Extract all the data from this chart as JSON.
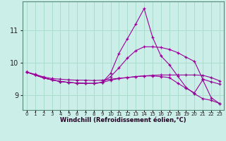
{
  "xlabel": "Windchill (Refroidissement éolien,°C)",
  "background_color": "#cceee8",
  "grid_color": "#aaddcc",
  "line_color": "#990099",
  "x_hours": [
    0,
    1,
    2,
    3,
    4,
    5,
    6,
    7,
    8,
    9,
    10,
    11,
    12,
    13,
    14,
    15,
    16,
    17,
    18,
    19,
    20,
    21,
    22,
    23
  ],
  "line1": [
    9.72,
    9.65,
    9.57,
    9.52,
    9.5,
    9.48,
    9.47,
    9.47,
    9.46,
    9.47,
    9.5,
    9.53,
    9.55,
    9.58,
    9.6,
    9.62,
    9.63,
    9.63,
    9.63,
    9.63,
    9.63,
    9.62,
    9.55,
    9.45
  ],
  "line2": [
    9.72,
    9.63,
    9.54,
    9.48,
    9.43,
    9.4,
    9.38,
    9.37,
    9.37,
    9.4,
    9.58,
    9.85,
    10.15,
    10.38,
    10.5,
    10.5,
    10.48,
    10.42,
    10.32,
    10.18,
    10.05,
    9.5,
    9.42,
    9.35
  ],
  "line3": [
    9.72,
    9.63,
    9.54,
    9.48,
    9.43,
    9.4,
    9.38,
    9.37,
    9.37,
    9.4,
    9.68,
    10.3,
    10.75,
    11.2,
    11.68,
    10.8,
    10.22,
    9.95,
    9.6,
    9.25,
    9.05,
    8.9,
    8.85,
    8.75
  ],
  "line4": [
    9.72,
    9.63,
    9.54,
    9.48,
    9.43,
    9.4,
    9.38,
    9.37,
    9.37,
    9.4,
    9.47,
    9.52,
    9.55,
    9.58,
    9.6,
    9.6,
    9.58,
    9.55,
    9.38,
    9.22,
    9.08,
    9.48,
    8.93,
    8.75
  ],
  "ylim": [
    8.55,
    11.9
  ],
  "yticks": [
    9,
    10,
    11
  ],
  "xtick_labels": [
    "0",
    "1",
    "2",
    "3",
    "4",
    "5",
    "6",
    "7",
    "8",
    "9",
    "10",
    "11",
    "12",
    "13",
    "14",
    "15",
    "16",
    "17",
    "18",
    "19",
    "20",
    "21",
    "22",
    "23"
  ]
}
